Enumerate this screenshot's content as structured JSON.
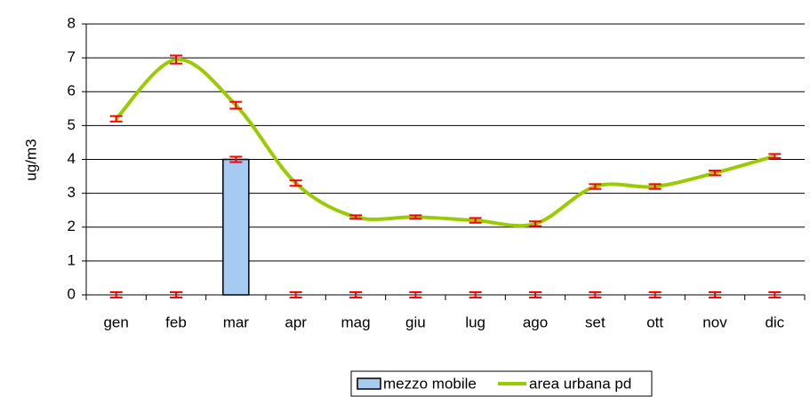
{
  "chart_data": {
    "type": "bar_line",
    "y_label": "ug/m3",
    "categories": [
      "gen",
      "feb",
      "mar",
      "apr",
      "mag",
      "giu",
      "lug",
      "ago",
      "set",
      "ott",
      "nov",
      "dic"
    ],
    "series": [
      {
        "name": "mezzo mobile",
        "type": "bar",
        "color": "#a6caf0",
        "values": [
          0,
          0,
          4,
          0,
          0,
          0,
          0,
          0,
          0,
          0,
          0,
          0
        ],
        "errors": [
          0.08,
          0.08,
          0.08,
          0.08,
          0.08,
          0.08,
          0.08,
          0.08,
          0.08,
          0.08,
          0.08,
          0.08
        ]
      },
      {
        "name": "area urbana pd",
        "type": "line",
        "color": "#99cc00",
        "values": [
          5.2,
          6.95,
          5.6,
          3.3,
          2.3,
          2.3,
          2.2,
          2.1,
          3.2,
          3.2,
          3.6,
          4.1
        ],
        "errors": [
          0.08,
          0.12,
          0.1,
          0.08,
          0.05,
          0.05,
          0.07,
          0.07,
          0.07,
          0.07,
          0.07,
          0.06
        ]
      }
    ],
    "error_color": "#ff0000",
    "ylim": [
      0,
      8
    ],
    "yticks": [
      0,
      1,
      2,
      3,
      4,
      5,
      6,
      7,
      8
    ],
    "grid": true,
    "legend": "bottom"
  }
}
